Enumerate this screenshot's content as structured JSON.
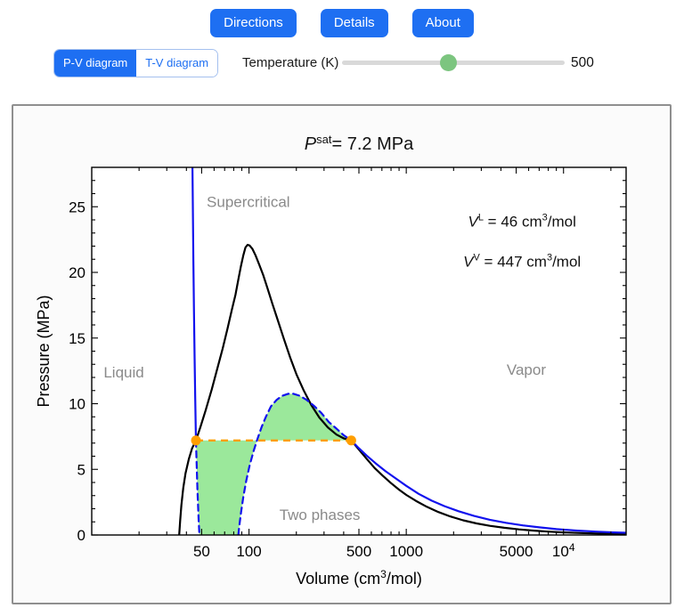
{
  "header": {
    "buttons": [
      {
        "label": "Directions"
      },
      {
        "label": "Details"
      },
      {
        "label": "About"
      }
    ]
  },
  "controls": {
    "tabs": [
      {
        "label": "P-V diagram",
        "selected": true
      },
      {
        "label": "T-V diagram",
        "selected": false
      }
    ],
    "slider": {
      "label": "Temperature (K)",
      "value": "500"
    }
  },
  "chart_data": {
    "type": "line",
    "title_segments": [
      {
        "t": "P",
        "italic": true
      },
      {
        "t": "sat",
        "sup": true
      },
      {
        "t": "= 7.2 MPa"
      }
    ],
    "ylabel": "Pressure (MPa)",
    "xlabel_segments": [
      {
        "t": "Volume (cm"
      },
      {
        "t": "3",
        "sup": true
      },
      {
        "t": "/mol)"
      }
    ],
    "xscale": "log",
    "xlim": [
      10,
      25000
    ],
    "ylim": [
      0,
      28
    ],
    "xticks": [
      {
        "v": 50,
        "t": "50"
      },
      {
        "v": 100,
        "t": "100"
      },
      {
        "v": 500,
        "t": "500"
      },
      {
        "v": 1000,
        "t": "1000"
      },
      {
        "v": 5000,
        "t": "5000"
      },
      {
        "v": 10000,
        "t": "10",
        "sup": "4"
      }
    ],
    "xminor": [
      20,
      30,
      40,
      60,
      70,
      80,
      90,
      200,
      300,
      400,
      600,
      700,
      800,
      900,
      2000,
      3000,
      4000,
      6000,
      7000,
      8000,
      9000,
      20000
    ],
    "yticks": [
      0,
      5,
      10,
      15,
      20,
      25
    ],
    "yminor": [
      1,
      2,
      3,
      4,
      6,
      7,
      8,
      9,
      11,
      12,
      13,
      14,
      16,
      17,
      18,
      19,
      21,
      22,
      23,
      24,
      26,
      27
    ],
    "saturation": {
      "psat_mpa": 7.2,
      "VL_cm3_mol": 46,
      "VV_cm3_mol": 447,
      "temperature_K": 500
    },
    "tie_line": {
      "p": 7.2,
      "v1": 46,
      "v2": 447
    },
    "series": [
      {
        "name": "saturation-dome",
        "style": "solid",
        "color": "#000000",
        "points": [
          [
            36,
            0
          ],
          [
            36.5,
            1.1
          ],
          [
            37.2,
            2.3
          ],
          [
            38.2,
            3.6
          ],
          [
            39.5,
            4.7
          ],
          [
            41.5,
            5.8
          ],
          [
            43.5,
            6.6
          ],
          [
            46,
            7.2
          ],
          [
            49,
            8.2
          ],
          [
            53,
            9.5
          ],
          [
            58,
            11.1
          ],
          [
            63,
            12.7
          ],
          [
            68,
            14.2
          ],
          [
            73,
            15.7
          ],
          [
            78,
            17.2
          ],
          [
            82,
            18.3
          ],
          [
            86,
            19.6
          ],
          [
            89,
            20.5
          ],
          [
            92,
            21.3
          ],
          [
            95,
            21.9
          ],
          [
            98,
            22.1
          ],
          [
            101,
            22.05
          ],
          [
            105,
            21.8
          ],
          [
            110,
            21.3
          ],
          [
            116,
            20.6
          ],
          [
            123,
            19.8
          ],
          [
            131,
            18.8
          ],
          [
            141,
            17.6
          ],
          [
            153,
            16.3
          ],
          [
            167,
            14.9
          ],
          [
            183,
            13.5
          ],
          [
            201,
            12.2
          ],
          [
            223,
            11.0
          ],
          [
            249,
            9.9
          ],
          [
            280,
            8.95
          ],
          [
            317,
            8.2
          ],
          [
            360,
            7.65
          ],
          [
            402,
            7.35
          ],
          [
            447,
            7.2
          ],
          [
            500,
            6.5
          ],
          [
            560,
            5.8
          ],
          [
            630,
            5.1
          ],
          [
            710,
            4.5
          ],
          [
            800,
            3.95
          ],
          [
            900,
            3.45
          ],
          [
            1000,
            3.05
          ],
          [
            1150,
            2.6
          ],
          [
            1350,
            2.15
          ],
          [
            1600,
            1.75
          ],
          [
            1900,
            1.42
          ],
          [
            2300,
            1.12
          ],
          [
            2800,
            0.88
          ],
          [
            3400,
            0.7
          ],
          [
            4200,
            0.55
          ],
          [
            5200,
            0.43
          ],
          [
            6500,
            0.33
          ],
          [
            8000,
            0.26
          ],
          [
            10000,
            0.2
          ],
          [
            13000,
            0.15
          ],
          [
            17000,
            0.11
          ],
          [
            22000,
            0.085
          ],
          [
            25000,
            0.075
          ]
        ]
      },
      {
        "name": "isotherm-liquid",
        "style": "solid",
        "color": "#1212ee",
        "points": [
          [
            43.7,
            28
          ],
          [
            44.0,
            24.5
          ],
          [
            44.3,
            21
          ],
          [
            44.7,
            17
          ],
          [
            45.1,
            13.5
          ],
          [
            45.5,
            10.4
          ],
          [
            46,
            7.2
          ]
        ]
      },
      {
        "name": "isotherm-vapor",
        "style": "solid",
        "color": "#1212ee",
        "points": [
          [
            447,
            7.2
          ],
          [
            500,
            6.6
          ],
          [
            560,
            6.05
          ],
          [
            640,
            5.45
          ],
          [
            740,
            4.85
          ],
          [
            860,
            4.3
          ],
          [
            1000,
            3.74
          ],
          [
            1200,
            3.13
          ],
          [
            1450,
            2.62
          ],
          [
            1750,
            2.2
          ],
          [
            2150,
            1.81
          ],
          [
            2700,
            1.45
          ],
          [
            3400,
            1.16
          ],
          [
            4300,
            0.93
          ],
          [
            5500,
            0.73
          ],
          [
            7000,
            0.58
          ],
          [
            9000,
            0.45
          ],
          [
            12000,
            0.34
          ],
          [
            16000,
            0.26
          ],
          [
            21000,
            0.2
          ],
          [
            25000,
            0.17
          ]
        ]
      },
      {
        "name": "vdw-loop-left",
        "style": "dashed",
        "color": "#1212ee",
        "points": [
          [
            46,
            7.2
          ],
          [
            46.5,
            5.2
          ],
          [
            47,
            3.4
          ],
          [
            47.8,
            1.2
          ],
          [
            48.4,
            0
          ]
        ]
      },
      {
        "name": "vdw-loop-main",
        "style": "dashed",
        "color": "#1212ee",
        "points": [
          [
            85.5,
            0
          ],
          [
            87,
            0.8
          ],
          [
            89,
            1.7
          ],
          [
            92,
            2.9
          ],
          [
            96,
            4.1
          ],
          [
            101,
            5.3
          ],
          [
            107,
            6.4
          ],
          [
            113,
            7.3
          ],
          [
            120,
            8.2
          ],
          [
            128,
            9.0
          ],
          [
            138,
            9.8
          ],
          [
            150,
            10.3
          ],
          [
            163,
            10.6
          ],
          [
            177,
            10.75
          ],
          [
            192,
            10.75
          ],
          [
            210,
            10.6
          ],
          [
            232,
            10.3
          ],
          [
            258,
            9.85
          ],
          [
            288,
            9.3
          ],
          [
            322,
            8.6
          ],
          [
            360,
            8.1
          ],
          [
            400,
            7.6
          ],
          [
            447,
            7.2
          ]
        ]
      }
    ],
    "phase_labels": [
      {
        "text": "Supercritical",
        "v": 99,
        "p": 25.4
      },
      {
        "text": "Liquid",
        "v": 16,
        "p": 12.4
      },
      {
        "text": "Vapor",
        "v": 5800,
        "p": 12.6
      },
      {
        "text": "Two phases",
        "v": 282,
        "p": 1.56
      }
    ],
    "annotations": [
      {
        "v": 5450,
        "p": 23.9,
        "segments": [
          {
            "t": "V",
            "italic": true
          },
          {
            "t": "L",
            "sup": true
          },
          {
            "t": " = 46 cm"
          },
          {
            "t": "3",
            "sup": true
          },
          {
            "t": "/mol"
          }
        ]
      },
      {
        "v": 5450,
        "p": 20.85,
        "segments": [
          {
            "t": "V",
            "italic": true
          },
          {
            "t": "V",
            "sup": true
          },
          {
            "t": " = 447 cm"
          },
          {
            "t": "3",
            "sup": true
          },
          {
            "t": "/mol"
          }
        ]
      }
    ],
    "colors": {
      "curve_blue": "#1212ee",
      "curve_black": "#000000",
      "tie_orange": "#ff9e00",
      "region_green": "#9be89b",
      "label_gray": "#8a8a8a",
      "accent_blue": "#1e6ff2",
      "thumb_green": "#7cc57f"
    }
  }
}
